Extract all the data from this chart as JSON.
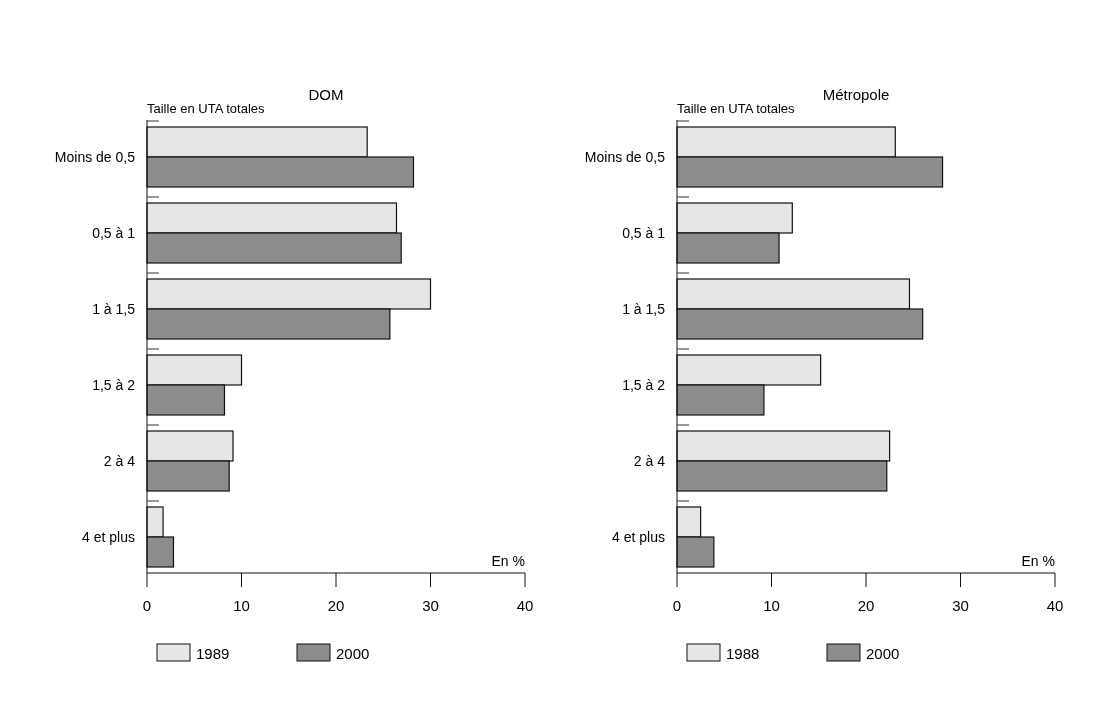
{
  "chart_data": [
    {
      "type": "bar",
      "orientation": "horizontal",
      "title": "DOM",
      "ylabel": "Taille en UTA totales",
      "xlabel": "En %",
      "categories": [
        "Moins de 0,5",
        "0,5 à 1",
        "1 à 1,5",
        "1,5 à 2",
        "2 à 4",
        "4 et plus"
      ],
      "series": [
        {
          "name": "1989",
          "color": "#e6e6e6",
          "values": [
            23.3,
            26.4,
            30.0,
            10.0,
            9.1,
            1.7
          ]
        },
        {
          "name": "2000",
          "color": "#8c8c8c",
          "values": [
            28.2,
            26.9,
            25.7,
            8.2,
            8.7,
            2.8
          ]
        }
      ],
      "xlim": [
        0,
        40
      ],
      "xticks": [
        0,
        10,
        20,
        30,
        40
      ],
      "legend": "bottom"
    },
    {
      "type": "bar",
      "orientation": "horizontal",
      "title": "Métropole",
      "ylabel": "Taille en UTA totales",
      "xlabel": "En %",
      "categories": [
        "Moins de 0,5",
        "0,5 à 1",
        "1 à 1,5",
        "1,5 à 2",
        "2 à 4",
        "4 et plus"
      ],
      "series": [
        {
          "name": "1988",
          "color": "#e6e6e6",
          "values": [
            23.1,
            12.2,
            24.6,
            15.2,
            22.5,
            2.5
          ]
        },
        {
          "name": "2000",
          "color": "#8c8c8c",
          "values": [
            28.1,
            10.8,
            26.0,
            9.2,
            22.2,
            3.9
          ]
        }
      ],
      "xlim": [
        0,
        40
      ],
      "xticks": [
        0,
        10,
        20,
        30,
        40
      ],
      "legend": "bottom"
    }
  ]
}
